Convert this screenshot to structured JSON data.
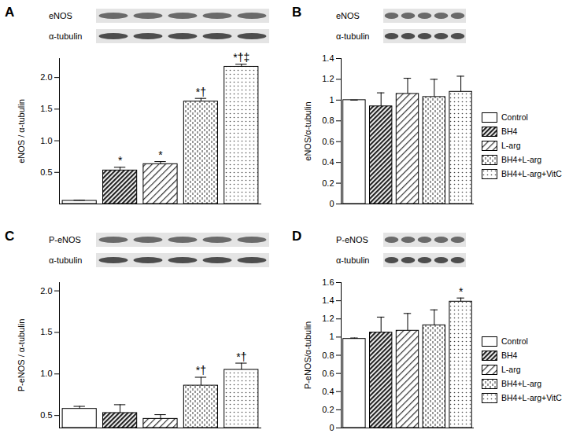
{
  "chart_data": [
    {
      "type": "bar",
      "title": "A",
      "blot_labels": [
        "eNOS",
        "α-tubulin"
      ],
      "ylabel": "eNOS / α-tubulin",
      "categories": [
        "Control",
        "BH4",
        "L-arg",
        "BH4+L-arg",
        "BH4+L-arg+VitC"
      ],
      "values": [
        0.05,
        0.53,
        0.63,
        1.62,
        2.17
      ],
      "errors": [
        0.01,
        0.05,
        0.04,
        0.05,
        0.04
      ],
      "annotations": [
        null,
        "*",
        "*",
        "*†",
        "*†‡"
      ],
      "ylim": [
        0,
        2.3
      ],
      "yticks": [
        0.5,
        {
          "value": 1,
          "label": "1.0"
        },
        1.5,
        {
          "value": 2,
          "label": "2.0"
        }
      ],
      "tick_labels": "y"
    },
    {
      "type": "bar",
      "title": "B",
      "blot_labels": [
        "eNOS",
        "α-tubulin"
      ],
      "ylabel": "eNOS/α-tubulin",
      "categories": [
        "Control",
        "BH4",
        "L-arg",
        "BH4+L-arg",
        "BH4+L-arg+VitC"
      ],
      "values": [
        1.0,
        0.94,
        1.06,
        1.03,
        1.08
      ],
      "errors": [
        0,
        0.13,
        0.15,
        0.17,
        0.15
      ],
      "ylim": [
        0,
        1.4
      ],
      "yticks": [
        0,
        0.2,
        0.4,
        0.6,
        0.8,
        1,
        1.2,
        1.4
      ],
      "tick_labels": "y",
      "legend": "right"
    },
    {
      "type": "bar",
      "title": "C",
      "blot_labels": [
        "P-eNOS",
        "α-tubulin"
      ],
      "ylabel": "P-eNOS / α-tubulin",
      "categories": [
        "Control",
        "BH4",
        "L-arg",
        "BH4+L-arg",
        "BH4+L-arg+VitC"
      ],
      "values": [
        0.58,
        0.53,
        0.46,
        0.86,
        1.05
      ],
      "errors": [
        0.03,
        0.1,
        0.05,
        0.1,
        0.08
      ],
      "annotations": [
        null,
        null,
        null,
        "*†",
        "*†"
      ],
      "ylim": [
        0.35,
        2.1
      ],
      "yticks": [
        0.5,
        {
          "value": 1,
          "label": "1.0"
        },
        1.5,
        {
          "value": 2,
          "label": "2.0"
        }
      ],
      "tick_labels": "y"
    },
    {
      "type": "bar",
      "title": "D",
      "blot_labels": [
        "P-eNOS",
        "α-tubulin"
      ],
      "ylabel": "P-eNOS/α-tubulin",
      "categories": [
        "Control",
        "BH4",
        "L-arg",
        "BH4+L-arg",
        "BH4+L-arg+VitC"
      ],
      "values": [
        0.98,
        1.05,
        1.07,
        1.13,
        1.39
      ],
      "errors": [
        0.01,
        0.17,
        0.19,
        0.17,
        0.04
      ],
      "annotations": [
        null,
        null,
        null,
        null,
        "*"
      ],
      "ylim": [
        0,
        1.6
      ],
      "yticks": [
        0,
        0.2,
        0.4,
        0.6,
        0.8,
        1,
        1.2,
        1.4,
        1.6
      ],
      "tick_labels": "y",
      "legend": "right"
    }
  ]
}
